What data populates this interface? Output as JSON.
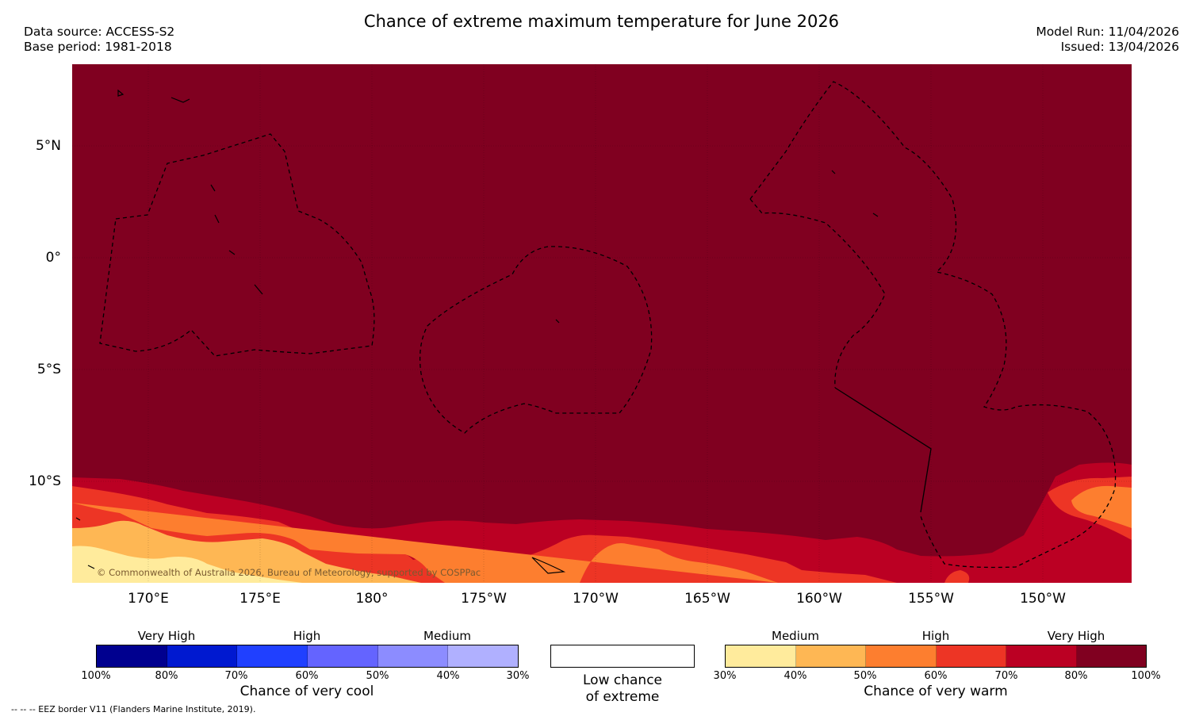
{
  "title": "Chance of extreme maximum temperature for June 2026",
  "data_source": "Data source: ACCESS-S2",
  "base_period": "Base period: 1981-2018",
  "model_run": "Model Run: 11/04/2026",
  "issued": "Issued: 13/04/2026",
  "copyright": "© Commonwealth of Australia 2026, Bureau of Meteorology, supported by COSPPac",
  "lat_labels": [
    "5°N",
    "0°",
    "5°S",
    "10°S"
  ],
  "lon_labels": [
    "170°E",
    "175°E",
    "180°",
    "175°W",
    "170°W",
    "165°W",
    "160°W",
    "155°W",
    "150°W"
  ],
  "legend": {
    "cool": {
      "title": "Chance of very cool",
      "levels": [
        "Very High",
        "High",
        "Medium"
      ],
      "ticks": [
        "100%",
        "80%",
        "70%",
        "60%",
        "50%",
        "40%",
        "30%"
      ],
      "colors": [
        "#00008f",
        "#0019d0",
        "#2040ff",
        "#6464ff",
        "#8c8cff",
        "#b0b0ff"
      ]
    },
    "neutral": {
      "line1": "Low chance",
      "line2": "of extreme"
    },
    "warm": {
      "title": "Chance of very warm",
      "levels": [
        "Medium",
        "High",
        "Very High"
      ],
      "ticks": [
        "30%",
        "40%",
        "50%",
        "60%",
        "70%",
        "80%",
        "100%"
      ],
      "colors": [
        "#ffeb9c",
        "#feb754",
        "#fd7e2f",
        "#ed3525",
        "#bb0023",
        "#800020"
      ]
    }
  },
  "footnote": "--  --  -- EEZ border V11 (Flanders Marine Institute, 2019)."
}
